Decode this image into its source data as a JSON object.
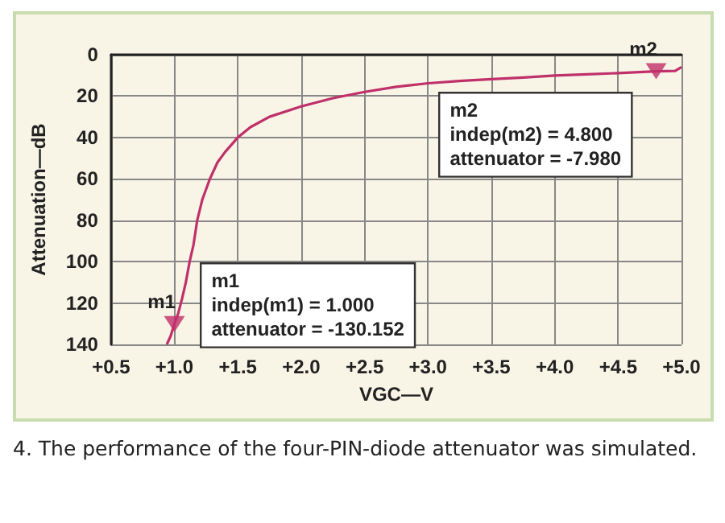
{
  "chart_data": {
    "type": "line",
    "xlabel": "VGC—V",
    "ylabel": "Attenuation—dB",
    "x": [
      0.94,
      0.97,
      1.0,
      1.03,
      1.06,
      1.09,
      1.12,
      1.15,
      1.18,
      1.22,
      1.28,
      1.34,
      1.4,
      1.5,
      1.6,
      1.75,
      2.0,
      2.25,
      2.5,
      2.75,
      3.0,
      3.25,
      3.5,
      3.75,
      4.0,
      4.25,
      4.5,
      4.8,
      4.95,
      5.0
    ],
    "series": [
      {
        "color": "#c0306a",
        "values": [
          140,
          136,
          130,
          125,
          118,
          110,
          100,
          92,
          80,
          70,
          60,
          52,
          47,
          40,
          35,
          30,
          25,
          21,
          18,
          15.5,
          13.8,
          12.7,
          11.8,
          11,
          10.1,
          9.5,
          8.9,
          8,
          7.8,
          6
        ]
      },
      {
        "type": "scatter",
        "marker": "triangle",
        "color": "#c0306a",
        "x": [
          1.0,
          4.8
        ],
        "values": [
          130.152,
          7.98
        ]
      }
    ],
    "xlim": [
      0.5,
      5.0
    ],
    "xticks": [
      {
        "value": 0.5,
        "label": "+0.5"
      },
      {
        "value": 1.0,
        "label": "+1.0"
      },
      {
        "value": 1.5,
        "label": "+1.5"
      },
      {
        "value": 2.0,
        "label": "+2.0"
      },
      {
        "value": 2.5,
        "label": "+2.5"
      },
      {
        "value": 3.0,
        "label": "+3.0"
      },
      {
        "value": 3.5,
        "label": "+3.5"
      },
      {
        "value": 4.0,
        "label": "+4.0"
      },
      {
        "value": 4.5,
        "label": "+4.5"
      },
      {
        "value": 5.0,
        "label": "+5.0"
      }
    ],
    "ylim": [
      140,
      0
    ],
    "yticks": [
      0,
      20,
      40,
      60,
      80,
      100,
      120,
      140
    ],
    "grid": true,
    "marker": "none",
    "line_style": "solid",
    "annotations": [
      {
        "text": "m1",
        "x": 1.0,
        "y": 130.152
      },
      {
        "text": "m2",
        "x": 4.8,
        "y": 7.98
      },
      "m1\nindep(m1) = 1.000\nattenuator = -130.152",
      "m2\nindep(m2) = 4.800\nattenuator = -7.980",
      "4. The performance of the four-PIN-diode attenuator was simulated."
    ]
  }
}
